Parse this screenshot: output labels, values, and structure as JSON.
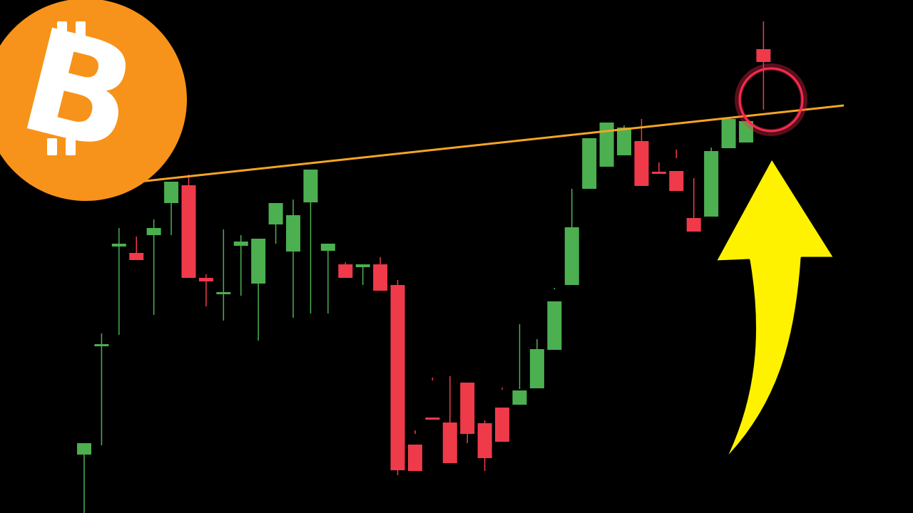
{
  "theme": {
    "background": "#000000",
    "bull_color": "#4caf50",
    "bear_color": "#ef3a4a",
    "trendline_color": "#f5a524",
    "arrow_color": "#fff200",
    "highlight_color": "#ff2b4f",
    "logo_color": "#f7931a",
    "logo_glyph_color": "#ffffff"
  },
  "logo": {
    "icon": "bitcoin-icon",
    "glyph": "B"
  },
  "annotations": {
    "arrow_icon": "curved-up-arrow-icon",
    "highlight_icon": "highlight-circle-icon",
    "highlight_candle_index": 38
  },
  "chart_data": {
    "type": "candlestick",
    "title": "",
    "xlabel": "",
    "ylabel": "",
    "ylim": [
      0,
      720
    ],
    "grid": false,
    "legend": "none",
    "series": [
      {
        "ohlc": [
          [
            82,
            95,
            0,
            98
          ],
          [
            235,
            252,
            95,
            237
          ],
          [
            374,
            400,
            250,
            378
          ],
          [
            365,
            388,
            357,
            355
          ],
          [
            390,
            412,
            278,
            400
          ],
          [
            435,
            455,
            390,
            465
          ],
          [
            460,
            475,
            330,
            330
          ],
          [
            330,
            335,
            290,
            325
          ],
          [
            310,
            398,
            270,
            310
          ],
          [
            375,
            390,
            305,
            381
          ],
          [
            322,
            368,
            242,
            385
          ],
          [
            405,
            422,
            378,
            435
          ],
          [
            367,
            440,
            274,
            418
          ],
          [
            436,
            468,
            280,
            482
          ],
          [
            368,
            372,
            280,
            378
          ],
          [
            349,
            352,
            340,
            330
          ],
          [
            345,
            349,
            320,
            349
          ],
          [
            349,
            359,
            323,
            312
          ],
          [
            320,
            327,
            53,
            60
          ],
          [
            96,
            116,
            111,
            59
          ],
          [
            134,
            190,
            186,
            132
          ],
          [
            127,
            192,
            108,
            70
          ],
          [
            183,
            163,
            98,
            111
          ],
          [
            126,
            130,
            59,
            77
          ],
          [
            148,
            176,
            173,
            100
          ],
          [
            152,
            174,
            265,
            172
          ],
          [
            175,
            195,
            244,
            230
          ],
          [
            229,
            316,
            314,
            297
          ],
          [
            320,
            350,
            455,
            401
          ],
          [
            455,
            469,
            488,
            526
          ],
          [
            486,
            503,
            500,
            548
          ],
          [
            502,
            544,
            524,
            541
          ],
          [
            522,
            553,
            495,
            459
          ],
          [
            479,
            492,
            478,
            478
          ],
          [
            480,
            510,
            498,
            452
          ],
          [
            414,
            470,
            412,
            395
          ],
          [
            416,
            448,
            513,
            508
          ],
          [
            512,
            522,
            552,
            553
          ],
          [
            520,
            546,
            530,
            550
          ],
          [
            651,
            690,
            566,
            633
          ]
        ]
      }
    ]
  }
}
